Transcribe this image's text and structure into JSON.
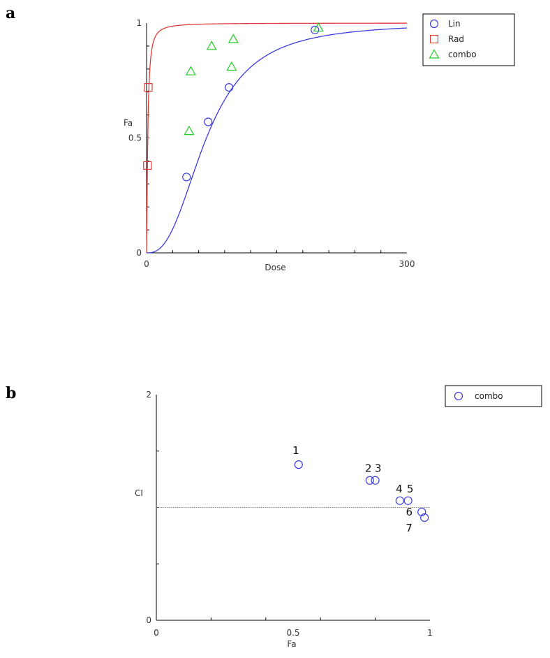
{
  "panels": {
    "a": {
      "letter": "a"
    },
    "b": {
      "letter": "b"
    }
  },
  "chart_data": [
    {
      "type": "scatter",
      "panel": "a",
      "xlabel": "Dose",
      "ylabel": "Fa",
      "xlim": [
        0,
        300
      ],
      "ylim": [
        0,
        1
      ],
      "x_ticks": [
        0,
        300
      ],
      "y_ticks": [
        0,
        0.5,
        1
      ],
      "legend_position": "top-right",
      "series": [
        {
          "name": "Lin",
          "marker": "circle",
          "color": "#3b3be0",
          "points": [
            [
              46,
              0.33
            ],
            [
              71,
              0.57
            ],
            [
              95,
              0.72
            ],
            [
              194,
              0.97
            ]
          ],
          "curve": {
            "model": "median-effect",
            "dm": 69,
            "m": 2.6
          }
        },
        {
          "name": "Rad",
          "marker": "square",
          "color": "#e03b3b",
          "points": [
            [
              1,
              0.38
            ],
            [
              2,
              0.72
            ]
          ],
          "curve": {
            "model": "median-effect",
            "dm": 1.4,
            "m": 1.4
          }
        },
        {
          "name": "combo",
          "marker": "triangle",
          "color": "#22cc22",
          "points": [
            [
              49,
              0.53
            ],
            [
              51,
              0.79
            ],
            [
              75,
              0.9
            ],
            [
              98,
              0.81
            ],
            [
              100,
              0.93
            ],
            [
              198,
              0.98
            ]
          ]
        }
      ]
    },
    {
      "type": "scatter",
      "panel": "b",
      "xlabel": "Fa",
      "ylabel": "CI",
      "xlim": [
        0,
        1
      ],
      "ylim": [
        0,
        2
      ],
      "x_ticks": [
        0,
        0.5,
        1
      ],
      "y_ticks": [
        0,
        2
      ],
      "reference_line": 1,
      "legend_position": "top-right",
      "series": [
        {
          "name": "combo",
          "marker": "circle",
          "color": "#3b3be0",
          "points": [
            {
              "x": 0.52,
              "y": 1.38,
              "label": "1"
            },
            {
              "x": 0.78,
              "y": 1.24,
              "label": "2"
            },
            {
              "x": 0.8,
              "y": 1.24,
              "label": "3"
            },
            {
              "x": 0.89,
              "y": 1.06,
              "label": "4"
            },
            {
              "x": 0.92,
              "y": 1.06,
              "label": "5"
            },
            {
              "x": 0.97,
              "y": 0.96,
              "label": "6"
            },
            {
              "x": 0.98,
              "y": 0.91,
              "label": "7"
            }
          ]
        }
      ]
    }
  ]
}
